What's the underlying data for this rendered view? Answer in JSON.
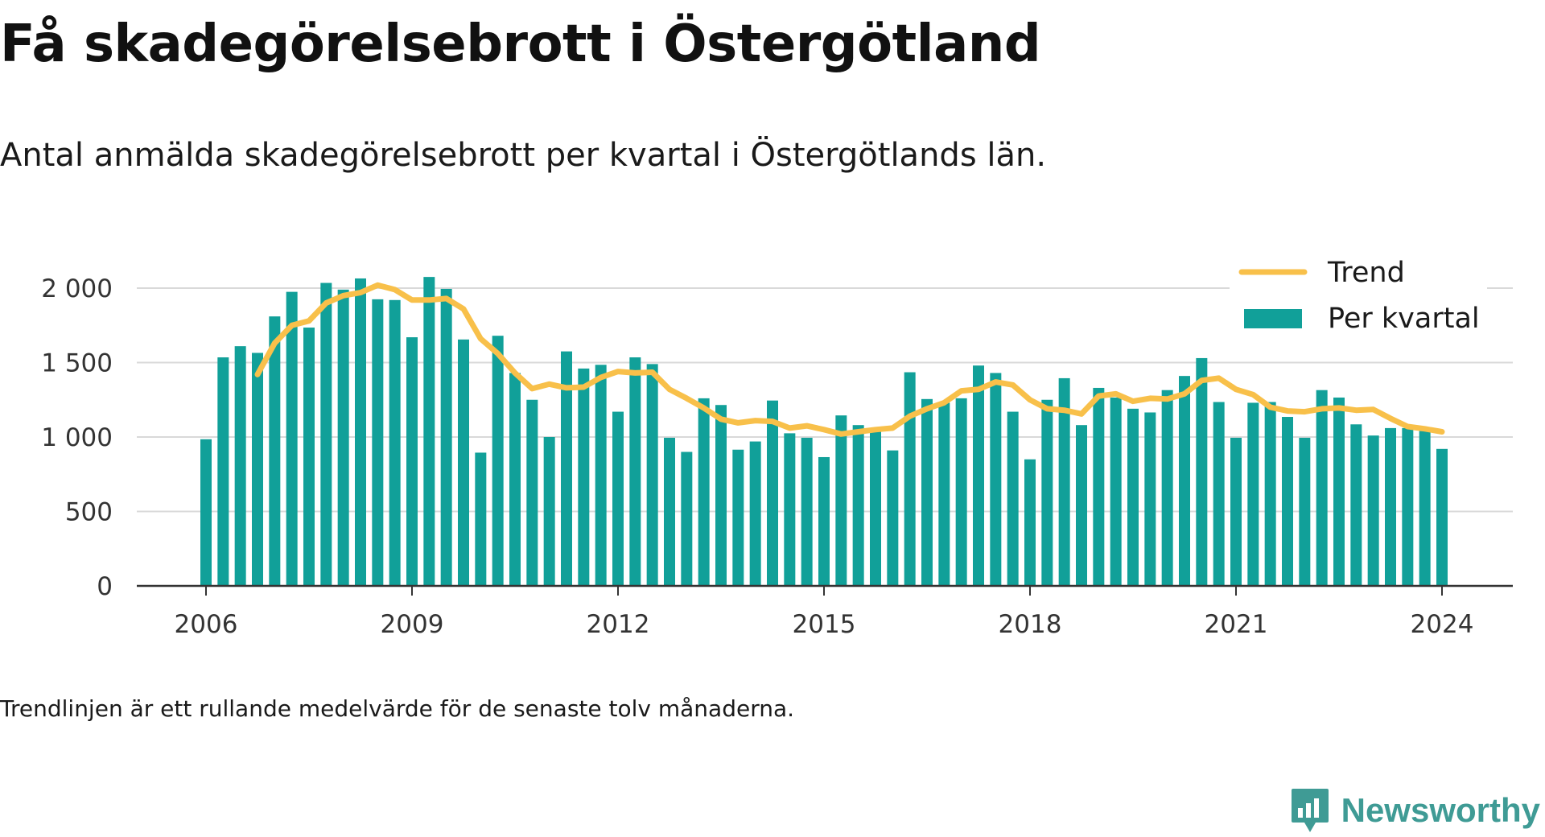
{
  "title": "Få skadegörelsebrott i Östergötland",
  "subtitle": "Antal anmälda skadegörelsebrott per kvartal i Östergötlands län.",
  "footnote": "Trendlinjen är ett rullande medelvärde för de senaste tolv månaderna.",
  "brand": {
    "name": "Newsworthy",
    "icon": "newsworthy-logo-icon"
  },
  "colors": {
    "bar": "#11a099",
    "trend": "#f8c04a",
    "grid": "#d9d9d9",
    "axis": "#333333"
  },
  "chart_data": {
    "type": "bar",
    "ylim": [
      0,
      2000
    ],
    "yticks": [
      0,
      500,
      1000,
      1500,
      2000
    ],
    "ytick_labels": [
      "0",
      "500",
      "1 000",
      "1 500",
      "2 000"
    ],
    "xticks": [
      2006,
      2009,
      2012,
      2015,
      2018,
      2021,
      2024
    ],
    "grid": true,
    "legend_position": "top-right",
    "series": [
      {
        "name": "Per kvartal",
        "type": "bar",
        "x": [
          "2006Q1",
          "2006Q2",
          "2006Q3",
          "2006Q4",
          "2007Q1",
          "2007Q2",
          "2007Q3",
          "2007Q4",
          "2008Q1",
          "2008Q2",
          "2008Q3",
          "2008Q4",
          "2009Q1",
          "2009Q2",
          "2009Q3",
          "2009Q4",
          "2010Q1",
          "2010Q2",
          "2010Q3",
          "2010Q4",
          "2011Q1",
          "2011Q2",
          "2011Q3",
          "2011Q4",
          "2012Q1",
          "2012Q2",
          "2012Q3",
          "2012Q4",
          "2013Q1",
          "2013Q2",
          "2013Q3",
          "2013Q4",
          "2014Q1",
          "2014Q2",
          "2014Q3",
          "2014Q4",
          "2015Q1",
          "2015Q2",
          "2015Q3",
          "2015Q4",
          "2016Q1",
          "2016Q2",
          "2016Q3",
          "2016Q4",
          "2017Q1",
          "2017Q2",
          "2017Q3",
          "2017Q4",
          "2018Q1",
          "2018Q2",
          "2018Q3",
          "2018Q4",
          "2019Q1",
          "2019Q2",
          "2019Q3",
          "2019Q4",
          "2020Q1",
          "2020Q2",
          "2020Q3",
          "2020Q4",
          "2021Q1",
          "2021Q2",
          "2021Q3",
          "2021Q4",
          "2022Q1",
          "2022Q2",
          "2022Q3",
          "2022Q4",
          "2023Q1",
          "2023Q2",
          "2023Q3",
          "2023Q4",
          "2024Q1"
        ],
        "values": [
          985,
          1535,
          1610,
          1565,
          1810,
          1975,
          1735,
          2035,
          1990,
          2065,
          1925,
          1920,
          1670,
          2075,
          1995,
          1655,
          895,
          1680,
          1430,
          1250,
          1000,
          1575,
          1460,
          1485,
          1170,
          1535,
          1490,
          995,
          900,
          1260,
          1215,
          915,
          970,
          1245,
          1025,
          995,
          865,
          1145,
          1080,
          1045,
          910,
          1435,
          1255,
          1230,
          1260,
          1480,
          1430,
          1170,
          850,
          1250,
          1395,
          1080,
          1330,
          1265,
          1190,
          1165,
          1315,
          1410,
          1530,
          1235,
          995,
          1230,
          1235,
          1135,
          995,
          1315,
          1265,
          1085,
          1010,
          1060,
          1060,
          1040,
          920
        ]
      },
      {
        "name": "Trend",
        "type": "line",
        "x": [
          "2006Q4",
          "2007Q1",
          "2007Q2",
          "2007Q3",
          "2007Q4",
          "2008Q1",
          "2008Q2",
          "2008Q3",
          "2008Q4",
          "2009Q1",
          "2009Q2",
          "2009Q3",
          "2009Q4",
          "2010Q1",
          "2010Q2",
          "2010Q3",
          "2010Q4",
          "2011Q1",
          "2011Q2",
          "2011Q3",
          "2011Q4",
          "2012Q1",
          "2012Q2",
          "2012Q3",
          "2012Q4",
          "2013Q1",
          "2013Q2",
          "2013Q3",
          "2013Q4",
          "2014Q1",
          "2014Q2",
          "2014Q3",
          "2014Q4",
          "2015Q1",
          "2015Q2",
          "2015Q3",
          "2015Q4",
          "2016Q1",
          "2016Q2",
          "2016Q3",
          "2016Q4",
          "2017Q1",
          "2017Q2",
          "2017Q3",
          "2017Q4",
          "2018Q1",
          "2018Q2",
          "2018Q3",
          "2018Q4",
          "2019Q1",
          "2019Q2",
          "2019Q3",
          "2019Q4",
          "2020Q1",
          "2020Q2",
          "2020Q3",
          "2020Q4",
          "2021Q1",
          "2021Q2",
          "2021Q3",
          "2021Q4",
          "2022Q1",
          "2022Q2",
          "2022Q3",
          "2022Q4",
          "2023Q1",
          "2023Q2",
          "2023Q3",
          "2023Q4",
          "2024Q1"
        ],
        "values": [
          1420,
          1630,
          1750,
          1780,
          1900,
          1950,
          1970,
          2020,
          1990,
          1920,
          1920,
          1930,
          1860,
          1660,
          1560,
          1430,
          1325,
          1355,
          1330,
          1335,
          1400,
          1440,
          1430,
          1435,
          1320,
          1260,
          1195,
          1120,
          1095,
          1110,
          1105,
          1060,
          1075,
          1050,
          1020,
          1035,
          1050,
          1060,
          1140,
          1190,
          1230,
          1310,
          1320,
          1370,
          1350,
          1250,
          1190,
          1180,
          1155,
          1275,
          1290,
          1240,
          1260,
          1255,
          1290,
          1380,
          1395,
          1320,
          1285,
          1200,
          1175,
          1170,
          1190,
          1195,
          1180,
          1185,
          1125,
          1070,
          1055,
          1035
        ]
      }
    ]
  }
}
